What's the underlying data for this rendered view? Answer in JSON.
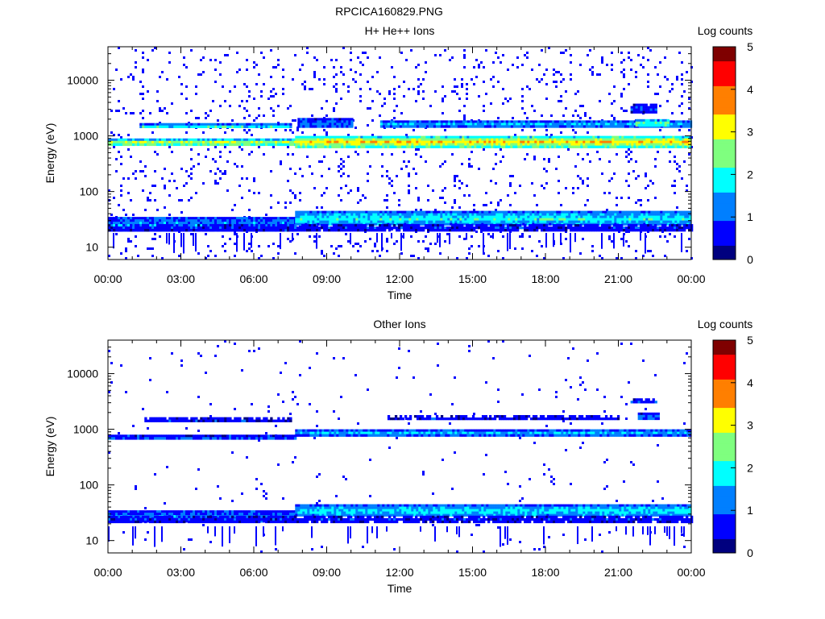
{
  "page": {
    "title": "RPCICA160829.PNG"
  },
  "colorscale": [
    "#00007f",
    "#0000ff",
    "#007fff",
    "#00ffff",
    "#7fff7f",
    "#ffff00",
    "#ff7f00",
    "#ff0000",
    "#7f0000"
  ],
  "chart_data": [
    {
      "type": "heatmap",
      "title": "H+ He++ Ions",
      "xlabel": "Time",
      "ylabel": "Energy (eV)",
      "xlim_hours": [
        0,
        24
      ],
      "ylim": [
        6,
        40000
      ],
      "yscale": "log",
      "x_ticks": [
        "00:00",
        "03:00",
        "06:00",
        "09:00",
        "12:00",
        "15:00",
        "18:00",
        "21:00",
        "00:00"
      ],
      "y_ticks": [
        {
          "value": 10,
          "label": "10"
        },
        {
          "value": 100,
          "label": "100"
        },
        {
          "value": 1000,
          "label": "1000"
        },
        {
          "value": 10000,
          "label": "10000"
        }
      ],
      "colorbar": {
        "label": "Log counts",
        "range": [
          0,
          5
        ],
        "ticks": [
          "0",
          "1",
          "2",
          "3",
          "4",
          "5"
        ]
      },
      "noise_density": 0.055,
      "bands": [
        {
          "t0": 0,
          "t1": 7.7,
          "e0": 700,
          "e1": 900,
          "level": 3.0
        },
        {
          "t0": 7.7,
          "t1": 24,
          "e0": 650,
          "e1": 1000,
          "level": 3.4
        },
        {
          "t0": 1.3,
          "t1": 7.5,
          "e0": 1400,
          "e1": 1700,
          "level": 1.9
        },
        {
          "t0": 7.8,
          "t1": 10.0,
          "e0": 1500,
          "e1": 2100,
          "level": 1.2
        },
        {
          "t0": 11.2,
          "t1": 24,
          "e0": 1500,
          "e1": 1900,
          "level": 1.6
        },
        {
          "t0": 21.7,
          "t1": 23.0,
          "e0": 1500,
          "e1": 2000,
          "level": 2.4
        },
        {
          "t0": 21.5,
          "t1": 22.5,
          "e0": 2700,
          "e1": 3800,
          "level": 0.9
        },
        {
          "t0": 0,
          "t1": 7.7,
          "e0": 20,
          "e1": 35,
          "level": 1.4
        },
        {
          "t0": 7.7,
          "t1": 24,
          "e0": 26,
          "e1": 45,
          "level": 2.0
        },
        {
          "t0": 0,
          "t1": 24,
          "e0": 20,
          "e1": 26,
          "level": 0.7
        }
      ]
    },
    {
      "type": "heatmap",
      "title": "Other Ions",
      "xlabel": "Time",
      "ylabel": "Energy (eV)",
      "xlim_hours": [
        0,
        24
      ],
      "ylim": [
        6,
        40000
      ],
      "yscale": "log",
      "x_ticks": [
        "00:00",
        "03:00",
        "06:00",
        "09:00",
        "12:00",
        "15:00",
        "18:00",
        "21:00",
        "00:00"
      ],
      "y_ticks": [
        {
          "value": 10,
          "label": "10"
        },
        {
          "value": 100,
          "label": "100"
        },
        {
          "value": 1000,
          "label": "1000"
        },
        {
          "value": 10000,
          "label": "10000"
        }
      ],
      "colorbar": {
        "label": "Log counts",
        "range": [
          0,
          5
        ],
        "ticks": [
          "0",
          "1",
          "2",
          "3",
          "4",
          "5"
        ]
      },
      "noise_density": 0.012,
      "bands": [
        {
          "t0": 0,
          "t1": 7.7,
          "e0": 700,
          "e1": 800,
          "level": 1.1
        },
        {
          "t0": 7.7,
          "t1": 24,
          "e0": 800,
          "e1": 1000,
          "level": 1.6
        },
        {
          "t0": 1.5,
          "t1": 7.5,
          "e0": 1450,
          "e1": 1650,
          "level": 0.8
        },
        {
          "t0": 11.5,
          "t1": 21,
          "e0": 1500,
          "e1": 1800,
          "level": 0.6
        },
        {
          "t0": 21.8,
          "t1": 22.6,
          "e0": 1500,
          "e1": 2000,
          "level": 1.2
        },
        {
          "t0": 21.5,
          "t1": 22.5,
          "e0": 3000,
          "e1": 3600,
          "level": 0.6
        },
        {
          "t0": 0,
          "t1": 7.7,
          "e0": 22,
          "e1": 35,
          "level": 1.3
        },
        {
          "t0": 7.7,
          "t1": 24,
          "e0": 28,
          "e1": 45,
          "level": 1.9
        },
        {
          "t0": 0,
          "t1": 24,
          "e0": 22,
          "e1": 28,
          "level": 0.7
        }
      ]
    }
  ]
}
